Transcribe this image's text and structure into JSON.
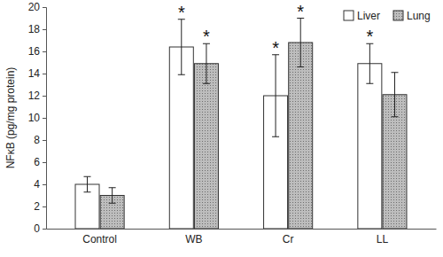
{
  "chart_data": {
    "type": "bar",
    "y_label": "NFκB (pg/mg protein)",
    "categories": [
      "Control",
      "WB",
      "Cr",
      "LL"
    ],
    "series": [
      {
        "name": "Liver",
        "color": "#ffffff",
        "values": [
          4.0,
          16.4,
          12.0,
          14.9
        ],
        "errors": [
          0.7,
          2.5,
          3.7,
          1.8
        ],
        "annotations": [
          null,
          "*",
          "*",
          "*"
        ]
      },
      {
        "name": "Lung",
        "color": "#bdbdbd",
        "values": [
          3.0,
          14.9,
          16.8,
          12.1
        ],
        "errors": [
          0.7,
          1.8,
          2.2,
          2.0
        ],
        "annotations": [
          null,
          "*",
          "*",
          null
        ]
      }
    ],
    "ylim": [
      0,
      20
    ],
    "yticks": [
      0,
      2,
      4,
      6,
      8,
      10,
      12,
      14,
      16,
      18,
      20
    ],
    "grid": false,
    "legend": "top-right"
  }
}
